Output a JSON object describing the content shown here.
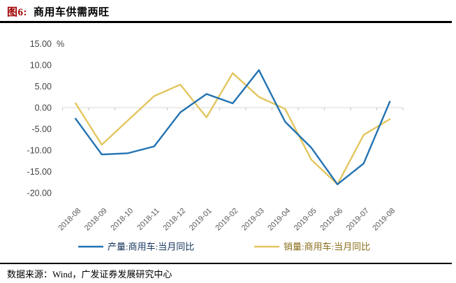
{
  "header": {
    "figure_label": "图6:",
    "title": "商用车供需两旺"
  },
  "footer": {
    "source_label": "数据来源：",
    "source_text": "Wind，广发证券发展研究中心"
  },
  "chart_data": {
    "type": "line",
    "title": "商用车供需两旺",
    "categories": [
      "2018-08",
      "2018-09",
      "2018-10",
      "2018-11",
      "2018-12",
      "2019-01",
      "2019-02",
      "2019-03",
      "2019-04",
      "2019-05",
      "2019-06",
      "2019-07",
      "2019-08"
    ],
    "series": [
      {
        "name": "产量:商用车:当月同比",
        "color": "#2272B2",
        "legend_text_color": "#17365D",
        "values": [
          -2.6,
          -11.0,
          -10.7,
          -9.1,
          -1.1,
          3.2,
          1.0,
          8.8,
          -3.3,
          -9.4,
          -18.0,
          -13.1,
          1.4
        ]
      },
      {
        "name": "销量:商用车:当月同比",
        "color": "#E3C65F",
        "legend_text_color": "#8A6D1A",
        "values": [
          1.0,
          -8.7,
          -3.0,
          2.7,
          5.4,
          -2.3,
          8.1,
          2.5,
          -0.3,
          -12.2,
          -18.0,
          -6.4,
          -2.7
        ]
      }
    ],
    "y_axis": {
      "min": -20,
      "max": 15,
      "step": 5,
      "unit": "%",
      "tick_labels": [
        "15.00",
        "10.00",
        "5.00",
        "0.00",
        "-5.00",
        "-10.00",
        "-15.00",
        "-20.00"
      ]
    },
    "xlabel": "",
    "ylabel": "",
    "legend_position": "bottom",
    "grid": false,
    "axis_colors": {
      "axis_line": "#D9D9D9",
      "tick_mark": "#C6C6C6",
      "y_label": "#444444",
      "x_label": "#595959"
    }
  }
}
